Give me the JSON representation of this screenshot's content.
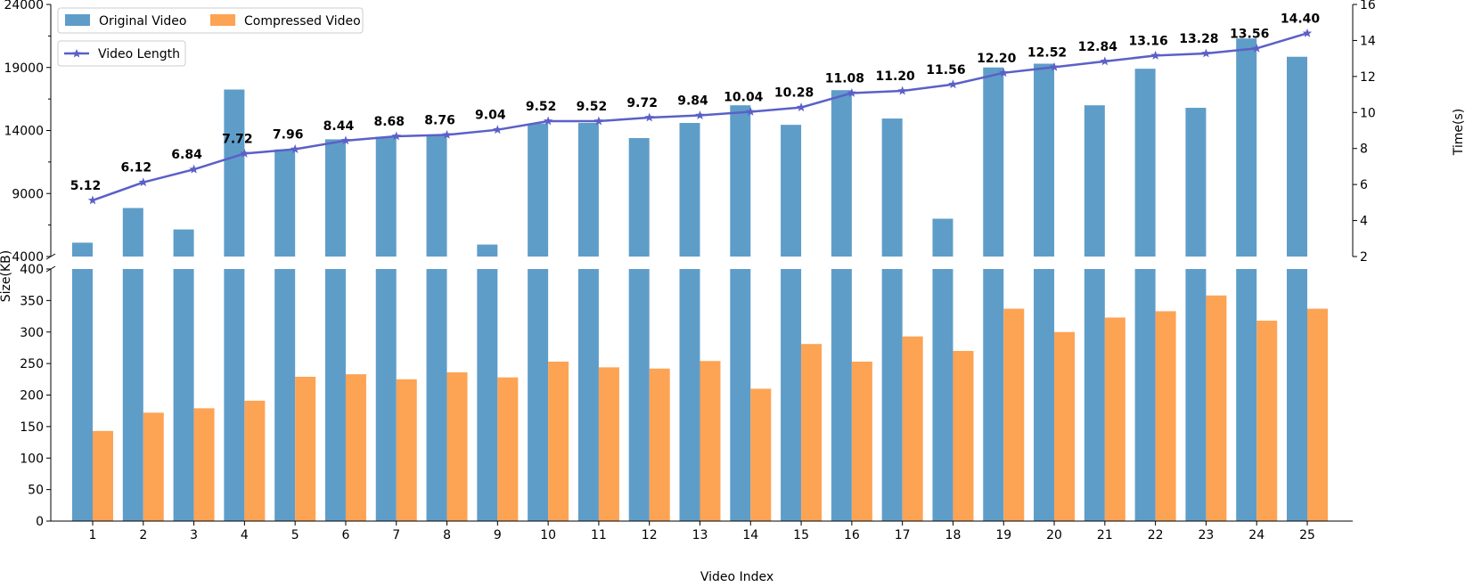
{
  "chart_data": {
    "type": "bar",
    "categories": [
      "1",
      "2",
      "3",
      "4",
      "5",
      "6",
      "7",
      "8",
      "9",
      "10",
      "11",
      "12",
      "13",
      "14",
      "15",
      "16",
      "17",
      "18",
      "19",
      "20",
      "21",
      "22",
      "23",
      "24",
      "25"
    ],
    "series": [
      {
        "name": "Original Video",
        "color": "#5f9dc9",
        "values": [
          5100,
          7850,
          6150,
          17250,
          12500,
          13300,
          13500,
          13650,
          4950,
          14550,
          14600,
          13400,
          14600,
          16000,
          14450,
          17200,
          14950,
          7000,
          19000,
          19300,
          16000,
          18900,
          15800,
          21300,
          19850
        ]
      },
      {
        "name": "Compressed Video",
        "color": "#fda354",
        "values": [
          143,
          172,
          179,
          191,
          229,
          233,
          225,
          236,
          228,
          253,
          244,
          242,
          254,
          210,
          281,
          253,
          293,
          270,
          337,
          300,
          323,
          333,
          358,
          318,
          337
        ]
      },
      {
        "name": "Video Length",
        "type": "line",
        "axis": "right",
        "color": "#5b60c7",
        "marker": "star",
        "values": [
          5.12,
          6.12,
          6.84,
          7.72,
          7.96,
          8.44,
          8.68,
          8.76,
          9.04,
          9.52,
          9.52,
          9.72,
          9.84,
          10.04,
          10.28,
          11.08,
          11.2,
          11.56,
          12.2,
          12.52,
          12.84,
          13.16,
          13.28,
          13.56,
          14.4
        ],
        "labels": [
          "5.12",
          "6.12",
          "6.84",
          "7.72",
          "7.96",
          "8.44",
          "8.68",
          "8.76",
          "9.04",
          "9.52",
          "9.52",
          "9.72",
          "9.84",
          "10.04",
          "10.28",
          "11.08",
          "11.20",
          "11.56",
          "12.20",
          "12.52",
          "12.84",
          "13.16",
          "13.28",
          "13.56",
          "14.40"
        ]
      }
    ],
    "xlabel": "Video Index",
    "ylabel": "Size(KB)",
    "y2label": "Time(s)",
    "y_axis_broken": true,
    "ylim_upper": [
      4000,
      24000
    ],
    "ylim_lower": [
      0,
      400
    ],
    "y2lim": [
      2,
      16
    ],
    "yticks_upper": [
      "4000",
      "9000",
      "14000",
      "19000",
      "24000"
    ],
    "yticks_lower": [
      "0",
      "50",
      "100",
      "150",
      "200",
      "250",
      "300",
      "350",
      "400"
    ],
    "y2ticks": [
      "2",
      "4",
      "6",
      "8",
      "10",
      "12",
      "14",
      "16"
    ],
    "legend_placement": "top-left",
    "grid": false
  }
}
